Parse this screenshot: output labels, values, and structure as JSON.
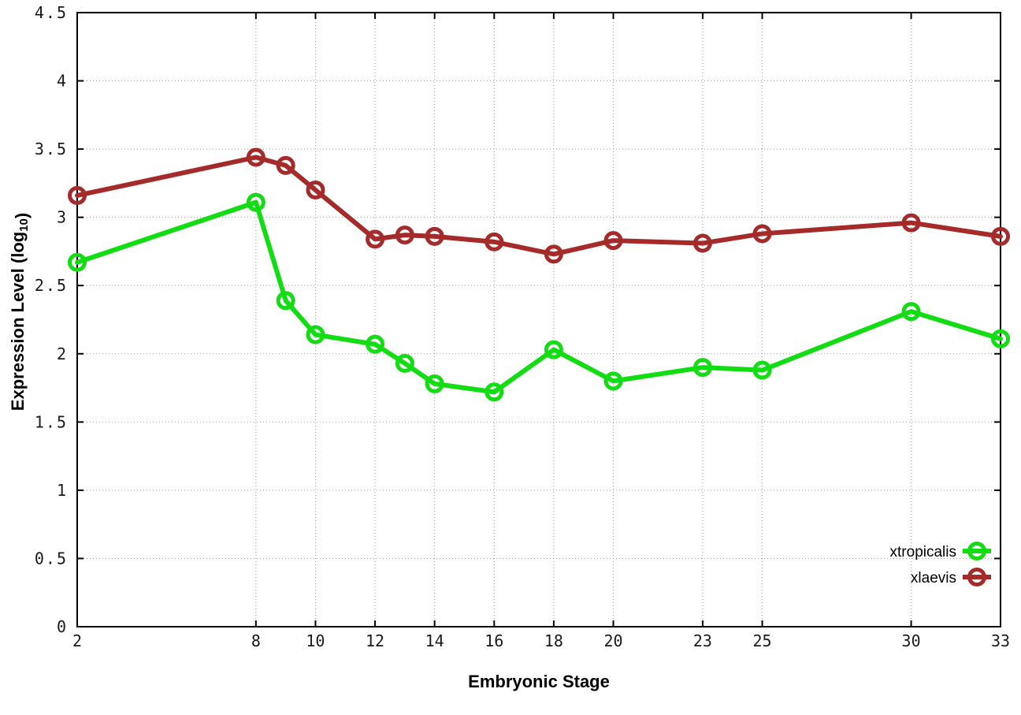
{
  "chart_data": {
    "type": "line",
    "title": "",
    "xlabel": "Embryonic Stage",
    "ylabel": "Expression Level (log10)",
    "ylabel_parts": [
      {
        "text": "Expression Level (log"
      },
      {
        "text": "10",
        "subscript": true
      },
      {
        "text": ")"
      }
    ],
    "x": [
      2,
      8,
      9,
      10,
      12,
      13,
      14,
      16,
      18,
      20,
      23,
      25,
      30,
      33
    ],
    "series": [
      {
        "name": "xtropicalis",
        "color": "#12dd12",
        "values": [
          2.67,
          3.11,
          2.39,
          2.14,
          2.07,
          1.93,
          1.78,
          1.72,
          2.03,
          1.8,
          1.9,
          1.88,
          2.31,
          2.11
        ]
      },
      {
        "name": "xlaevis",
        "color": "#a52a2a",
        "values": [
          3.16,
          3.44,
          3.38,
          3.2,
          2.84,
          2.87,
          2.86,
          2.82,
          2.73,
          2.83,
          2.81,
          2.88,
          2.96,
          2.86
        ]
      }
    ],
    "xlim": [
      2,
      33
    ],
    "ylim": [
      0,
      4.5
    ],
    "x_ticks": [
      2,
      8,
      10,
      12,
      14,
      16,
      18,
      20,
      23,
      25,
      30,
      33
    ],
    "x_tick_labels": [
      "2",
      "8",
      "10",
      "12",
      "14",
      "16",
      "18",
      "20",
      "23",
      "25",
      "30",
      "33"
    ],
    "y_ticks": [
      0,
      0.5,
      1,
      1.5,
      2,
      2.5,
      3,
      3.5,
      4,
      4.5
    ],
    "y_tick_labels": [
      "0",
      "0.5",
      "1",
      "1.5",
      "2",
      "2.5",
      "3",
      "3.5",
      "4",
      "4.5"
    ],
    "grid": true,
    "grid_color": "#9a9a9a",
    "axis_color": "#000000",
    "background_color": "#ffffff",
    "legend_position": "bottom-right",
    "legend_entries": [
      "xtropicalis",
      "xlaevis"
    ]
  }
}
